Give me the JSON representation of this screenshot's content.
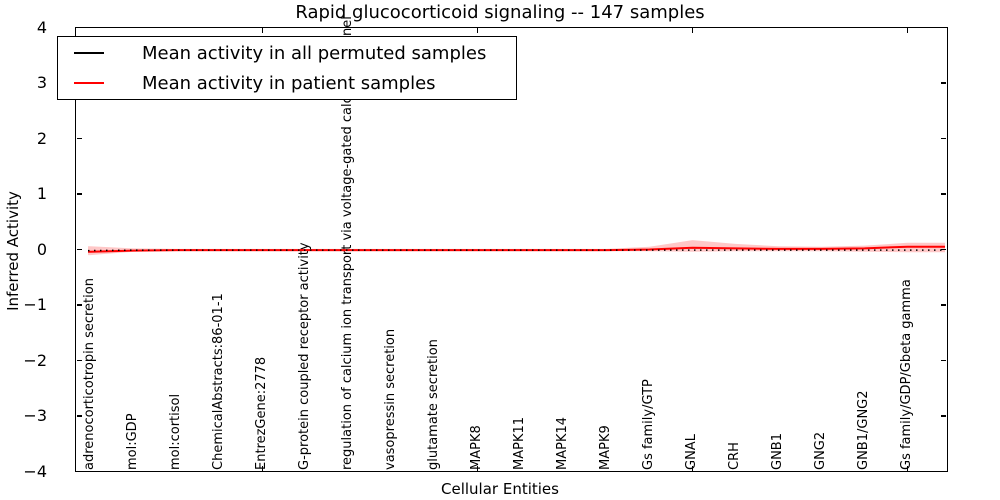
{
  "legend": {
    "entries": [
      {
        "label": "Mean activity in all permuted samples",
        "color": "#000000"
      },
      {
        "label": "Mean activity in patient samples",
        "color": "#ff0000"
      }
    ]
  },
  "axes": {
    "ylabel": "Inferred Activity",
    "xlabel": "Cellular Entities",
    "yticks": [
      "4",
      "3",
      "2",
      "1",
      "0",
      "−1",
      "−2",
      "−3",
      "−4"
    ]
  },
  "chart_data": {
    "type": "line",
    "title": "Rapid glucocorticoid signaling -- 147 samples",
    "xlabel": "Cellular Entities",
    "ylabel": "Inferred Activity",
    "ylim": [
      -4,
      4
    ],
    "grid": false,
    "legend_position": "upper left",
    "categories": [
      "adrenocorticotropin secretion",
      "mol:GDP",
      "mol:cortisol",
      "ChemicalAbstracts:86-01-1",
      "EntrezGene:2778",
      "G-protein coupled receptor activity",
      "regulation of calcium ion transport via voltage-gated calcium channel",
      "vasopressin secretion",
      "glutamate secretion",
      "MAPK8",
      "MAPK11",
      "MAPK14",
      "MAPK9",
      "Gs family/GTP",
      "GNAL",
      "CRH",
      "GNB1",
      "GNG2",
      "GNB1/GNG2",
      "Gs family/GDP/Gbeta gamma"
    ],
    "tick_mark_indices": [
      4,
      9,
      14,
      19
    ],
    "series": [
      {
        "name": "Mean activity in all permuted samples",
        "color": "#000000",
        "style": "dotted",
        "values": [
          -0.02,
          -0.01,
          -0.01,
          -0.01,
          -0.01,
          -0.01,
          -0.01,
          -0.01,
          -0.01,
          -0.01,
          -0.01,
          -0.01,
          -0.01,
          -0.01,
          -0.01,
          -0.01,
          -0.01,
          -0.01,
          -0.01,
          -0.01
        ]
      },
      {
        "name": "Mean activity in patient samples",
        "color": "#ff0000",
        "style": "solid",
        "values": [
          -0.04,
          -0.02,
          -0.01,
          -0.01,
          -0.01,
          -0.01,
          -0.01,
          -0.01,
          -0.01,
          -0.01,
          -0.01,
          -0.01,
          -0.01,
          0.0,
          0.03,
          0.02,
          0.01,
          0.01,
          0.02,
          0.05
        ],
        "band_upper": [
          0.06,
          0.02,
          0.01,
          0.01,
          0.01,
          0.01,
          0.01,
          0.01,
          0.01,
          0.01,
          0.01,
          0.01,
          0.01,
          0.05,
          0.17,
          0.1,
          0.06,
          0.05,
          0.07,
          0.12
        ],
        "band_lower": [
          -0.1,
          -0.04,
          -0.03,
          -0.03,
          -0.03,
          -0.03,
          -0.03,
          -0.03,
          -0.03,
          -0.03,
          -0.03,
          -0.03,
          -0.03,
          -0.03,
          -0.04,
          -0.03,
          -0.03,
          -0.03,
          -0.04,
          -0.05
        ]
      }
    ]
  }
}
